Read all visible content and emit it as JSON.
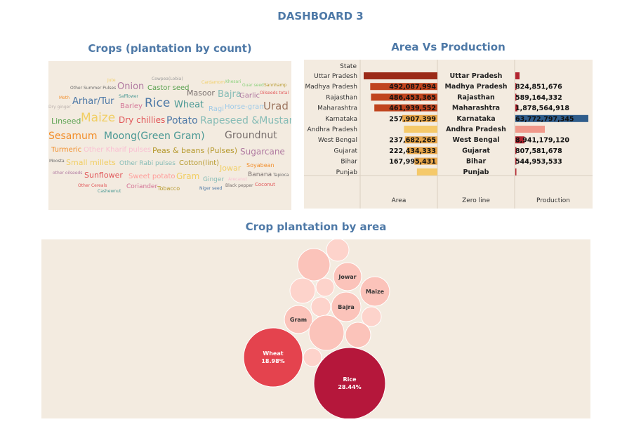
{
  "dashboard": {
    "title": "DASHBOARD 3"
  },
  "wordcloud": {
    "title": "Crops (plantation by count)",
    "words": [
      {
        "text": "Jute",
        "color": "#f1ce63"
      },
      {
        "text": "Cowpea(Lobia)",
        "color": "#9d9d9d"
      },
      {
        "text": "Cardamom",
        "color": "#f1ce63"
      },
      {
        "text": "Khesari",
        "color": "#8cd17d"
      },
      {
        "text": "Guar seed",
        "color": "#8cd17d"
      },
      {
        "text": "Sannhamp",
        "color": "#b6992d"
      },
      {
        "text": "Other Summer Pulses",
        "color": "#6c6c6c"
      },
      {
        "text": "Onion",
        "color": "#b07aa1"
      },
      {
        "text": "Castor seed",
        "color": "#59a14f"
      },
      {
        "text": "Safflower",
        "color": "#499894"
      },
      {
        "text": "Masoor",
        "color": "#79706e"
      },
      {
        "text": "Bajra",
        "color": "#86bcb6"
      },
      {
        "text": "Garlic",
        "color": "#b07aa1"
      },
      {
        "text": "Oilseeds total",
        "color": "#e15759"
      },
      {
        "text": "Moth",
        "color": "#f28e2b"
      },
      {
        "text": "Arhar/Tur",
        "color": "#4e79a7"
      },
      {
        "text": "Barley",
        "color": "#d37295"
      },
      {
        "text": "Rice",
        "color": "#4e79a7"
      },
      {
        "text": "Wheat",
        "color": "#499894"
      },
      {
        "text": "Dry ginger",
        "color": "#bab0ac"
      },
      {
        "text": "Ragi",
        "color": "#a0cbe8"
      },
      {
        "text": "Horse-gram",
        "color": "#a0cbe8"
      },
      {
        "text": "Urad",
        "color": "#9d7660"
      },
      {
        "text": "Linseed",
        "color": "#59a14f"
      },
      {
        "text": "Maize",
        "color": "#f1ce63"
      },
      {
        "text": "Dry chillies",
        "color": "#e15759"
      },
      {
        "text": "Potato",
        "color": "#4e79a7"
      },
      {
        "text": "Rapeseed &Mustard",
        "color": "#86bcb6"
      },
      {
        "text": "Sesamum",
        "color": "#f28e2b"
      },
      {
        "text": "Moong(Green Gram)",
        "color": "#499894"
      },
      {
        "text": "Groundnut",
        "color": "#79706e"
      },
      {
        "text": "Turmeric",
        "color": "#f28e2b"
      },
      {
        "text": "Other Kharif pulses",
        "color": "#fabfd2"
      },
      {
        "text": "Peas & beans (Pulses)",
        "color": "#b6992d"
      },
      {
        "text": "Sugarcane",
        "color": "#b07aa1"
      },
      {
        "text": "Moosta",
        "color": "#6c6c6c"
      },
      {
        "text": "Small millets",
        "color": "#f1ce63"
      },
      {
        "text": "Other Rabi pulses",
        "color": "#86bcb6"
      },
      {
        "text": "Cotton(lint)",
        "color": "#b6992d"
      },
      {
        "text": "Jowar",
        "color": "#f1ce63"
      },
      {
        "text": "Soyabean",
        "color": "#f28e2b"
      },
      {
        "text": "other oilseeds",
        "color": "#b07aa1"
      },
      {
        "text": "Sunflower",
        "color": "#e15759"
      },
      {
        "text": "Sweet potato",
        "color": "#ff9d9a"
      },
      {
        "text": "Gram",
        "color": "#f1ce63"
      },
      {
        "text": "Ginger",
        "color": "#86bcb6"
      },
      {
        "text": "Arecanut",
        "color": "#fabfd2"
      },
      {
        "text": "Banana",
        "color": "#79706e"
      },
      {
        "text": "Tapioca",
        "color": "#6c6c6c"
      },
      {
        "text": "Other Cereals",
        "color": "#e15759"
      },
      {
        "text": "Coriander",
        "color": "#d37295"
      },
      {
        "text": "Tobacco",
        "color": "#b6992d"
      },
      {
        "text": "Black pepper",
        "color": "#79706e"
      },
      {
        "text": "Coconut",
        "color": "#e15759"
      },
      {
        "text": "Cashewnut",
        "color": "#499894"
      },
      {
        "text": "Niger seed",
        "color": "#4e79a7"
      }
    ]
  },
  "area_vs_production": {
    "title": "Area Vs Production",
    "state_header": "State",
    "column_labels": {
      "area": "Area",
      "zero": "Zero line",
      "production": "Production"
    },
    "colors": {
      "area_high": "#9b2a18",
      "area_mid": "#c0441e",
      "area_low": "#e8a64a",
      "area_light": "#f5c96a",
      "prod_pos": "#b2242f",
      "prod_neg_blue": "#2f5d8c",
      "prod_salmon": "#f0988a"
    }
  },
  "bubble": {
    "title": "Crop plantation by area",
    "colors": {
      "rice": "#b5173b",
      "wheat": "#e4434e",
      "mid": "#f6a8a0",
      "light": "#fbc3ba",
      "pale": "#fdd3cb"
    }
  },
  "chart_data": [
    {
      "type": "wordcloud",
      "title": "Crops (plantation by count)",
      "words": [
        "Jute",
        "Cowpea(Lobia)",
        "Cardamom",
        "Khesari",
        "Guar seed",
        "Sannhamp",
        "Other Summer Pulses",
        "Onion",
        "Castor seed",
        "Safflower",
        "Masoor",
        "Bajra",
        "Garlic",
        "Oilseeds total",
        "Moth",
        "Arhar/Tur",
        "Barley",
        "Rice",
        "Wheat",
        "Dry ginger",
        "Ragi",
        "Horse-gram",
        "Urad",
        "Linseed",
        "Maize",
        "Dry chillies",
        "Potato",
        "Rapeseed &Mustard",
        "Sesamum",
        "Moong(Green Gram)",
        "Groundnut",
        "Turmeric",
        "Other Kharif pulses",
        "Peas & beans (Pulses)",
        "Sugarcane",
        "Moosta",
        "Small millets",
        "Other Rabi pulses",
        "Cotton(lint)",
        "Jowar",
        "Soyabean",
        "other oilseeds",
        "Sunflower",
        "Sweet potato",
        "Gram",
        "Ginger",
        "Arecanut",
        "Banana",
        "Tapioca",
        "Other Cereals",
        "Coriander",
        "Tobacco",
        "Black pepper",
        "Coconut",
        "Cashewnut",
        "Niger seed"
      ]
    },
    {
      "type": "bar",
      "title": "Area Vs Production",
      "categories": [
        "Uttar Pradesh",
        "Madhya Pradesh",
        "Rajasthan",
        "Maharashtra",
        "Karnataka",
        "Andhra Pradesh",
        "West Bengal",
        "Gujarat",
        "Bihar",
        "Punjab"
      ],
      "series": [
        {
          "name": "Area",
          "values": [
            540000000,
            492087994,
            486453365,
            461939552,
            257907399,
            245000000,
            237682265,
            222434333,
            167995431,
            150000000
          ],
          "labels": [
            "",
            "492,087,994",
            "486,453,365",
            "461,939,552",
            "257,907,399",
            "",
            "237,682,265",
            "222,434,333",
            "167,995,431",
            ""
          ]
        },
        {
          "name": "Production",
          "values": [
            3000000000,
            824851676,
            589164332,
            1878564918,
            63772797345,
            40000000000,
            8941179120,
            807581678,
            544953533,
            500000000
          ],
          "labels": [
            "",
            "824,851,676",
            "589,164,332",
            "1,878,564,918",
            "63,772,797,345",
            "",
            "8,941,179,120",
            "807,581,678",
            "544,953,533",
            ""
          ]
        }
      ],
      "xlabel_columns": [
        "Area",
        "Zero line",
        "Production"
      ],
      "ylabel": "State"
    },
    {
      "type": "bubble",
      "title": "Crop plantation by area",
      "items": [
        {
          "label": "Rice",
          "value": 28.44,
          "pct": "28.44%"
        },
        {
          "label": "Wheat",
          "value": 18.98,
          "pct": "18.98%"
        },
        {
          "label": "Gram",
          "value": 2.0
        },
        {
          "label": "Bajra",
          "value": 2.0
        },
        {
          "label": "Jowar",
          "value": 2.0
        },
        {
          "label": "Maize",
          "value": 2.0
        }
      ]
    }
  ]
}
